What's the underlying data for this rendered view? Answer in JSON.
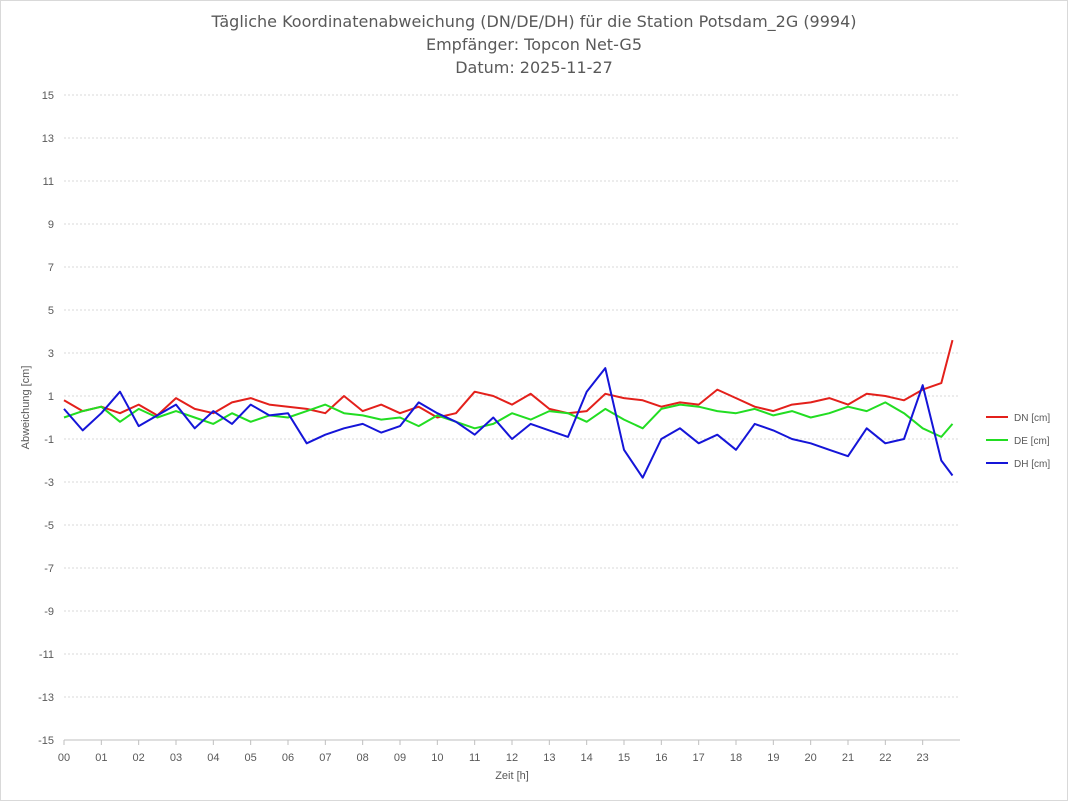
{
  "chart_data": {
    "type": "line",
    "title": "Tägliche Koordinatenabweichung (DN/DE/DH) für die Station Potsdam_2G (9994)",
    "subtitle": [
      "Empfänger: Topcon Net-G5",
      "Datum: 2025-11-27"
    ],
    "xlabel": "Zeit [h]",
    "ylabel": "Abweichung [cm]",
    "xlim": [
      0,
      24
    ],
    "ylim": [
      -15,
      15
    ],
    "x_ticks": [
      "00",
      "01",
      "02",
      "03",
      "04",
      "05",
      "06",
      "07",
      "08",
      "09",
      "10",
      "11",
      "12",
      "13",
      "14",
      "15",
      "16",
      "17",
      "18",
      "19",
      "20",
      "21",
      "22",
      "23"
    ],
    "y_ticks": [
      "15",
      "13",
      "11",
      "9",
      "7",
      "5",
      "3",
      "1",
      "-1",
      "-3",
      "-5",
      "-7",
      "-9",
      "-11",
      "-13",
      "-15"
    ],
    "grid": "horizontal-dotted",
    "legend_position": "right",
    "x": [
      0,
      0.5,
      1,
      1.5,
      2,
      2.5,
      3,
      3.5,
      4,
      4.5,
      5,
      5.5,
      6,
      6.5,
      7,
      7.5,
      8,
      8.5,
      9,
      9.5,
      10,
      10.5,
      11,
      11.5,
      12,
      12.5,
      13,
      13.5,
      14,
      14.5,
      15,
      15.5,
      16,
      16.5,
      17,
      17.5,
      18,
      18.5,
      19,
      19.5,
      20,
      20.5,
      21,
      21.5,
      22,
      22.5,
      23,
      23.5,
      23.8
    ],
    "series": [
      {
        "name": "DN [cm]",
        "color": "#e3201b",
        "values": [
          0.8,
          0.3,
          0.5,
          0.2,
          0.6,
          0.1,
          0.9,
          0.4,
          0.2,
          0.7,
          0.9,
          0.6,
          0.5,
          0.4,
          0.2,
          1.0,
          0.3,
          0.6,
          0.2,
          0.5,
          0.0,
          0.2,
          1.2,
          1.0,
          0.6,
          1.1,
          0.4,
          0.2,
          0.3,
          1.1,
          0.9,
          0.8,
          0.5,
          0.7,
          0.6,
          1.3,
          0.9,
          0.5,
          0.3,
          0.6,
          0.7,
          0.9,
          0.6,
          1.1,
          1.0,
          0.8,
          1.3,
          1.6,
          3.6
        ]
      },
      {
        "name": "DE [cm]",
        "color": "#22dd22",
        "values": [
          0.0,
          0.3,
          0.5,
          -0.2,
          0.4,
          0.0,
          0.3,
          0.0,
          -0.3,
          0.2,
          -0.2,
          0.1,
          0.0,
          0.3,
          0.6,
          0.2,
          0.1,
          -0.1,
          0.0,
          -0.4,
          0.1,
          -0.2,
          -0.5,
          -0.3,
          0.2,
          -0.1,
          0.3,
          0.2,
          -0.2,
          0.4,
          -0.1,
          -0.5,
          0.4,
          0.6,
          0.5,
          0.3,
          0.2,
          0.4,
          0.1,
          0.3,
          0.0,
          0.2,
          0.5,
          0.3,
          0.7,
          0.2,
          -0.5,
          -0.9,
          -0.3
        ]
      },
      {
        "name": "DH [cm]",
        "color": "#1515d8",
        "values": [
          0.4,
          -0.6,
          0.2,
          1.2,
          -0.4,
          0.1,
          0.6,
          -0.5,
          0.3,
          -0.3,
          0.6,
          0.1,
          0.2,
          -1.2,
          -0.8,
          -0.5,
          -0.3,
          -0.7,
          -0.4,
          0.7,
          0.2,
          -0.2,
          -0.8,
          0.0,
          -1.0,
          -0.3,
          -0.6,
          -0.9,
          1.2,
          2.3,
          -1.5,
          -2.8,
          -1.0,
          -0.5,
          -1.2,
          -0.8,
          -1.5,
          -0.3,
          -0.6,
          -1.0,
          -1.2,
          -1.5,
          -1.8,
          -0.5,
          -1.2,
          -1.0,
          1.5,
          -2.0,
          -2.7
        ]
      }
    ]
  }
}
